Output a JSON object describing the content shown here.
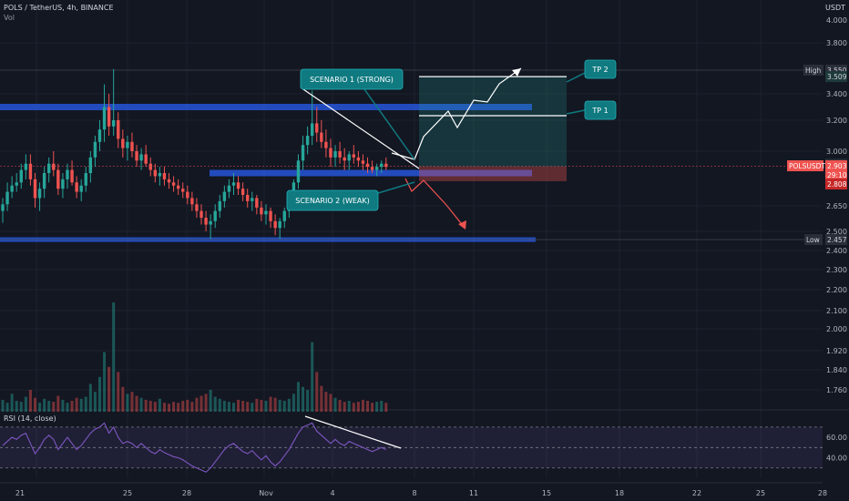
{
  "header": {
    "symbol_line": "POLS / TetherUS, 4h, BINANCE",
    "vol_label": "Vol"
  },
  "axis": {
    "unit": "USDT",
    "price_ticks": [
      "4.000",
      "3.800",
      "3.400",
      "3.200",
      "3.000",
      "2.650",
      "2.500",
      "2.400",
      "2.300",
      "2.200",
      "2.100",
      "2.000",
      "1.920",
      "1.840",
      "1.760"
    ],
    "rsi_ticks": [
      "60.00",
      "40.00"
    ],
    "time_ticks": [
      "21",
      "25",
      "28",
      "Nov",
      "4",
      "8",
      "11",
      "15",
      "18",
      "22",
      "25",
      "28"
    ]
  },
  "badges": {
    "high_label": "High",
    "high_price": "3.550",
    "tp2_price": "3.509",
    "tp1_price": "2.946",
    "symbol_tag": "POLSUSDT",
    "last_price": "2.903",
    "countdown": "29:10",
    "stop_price": "2.808",
    "low_label": "Low",
    "low_price": "2.457"
  },
  "annotations": {
    "scenario1": "SCENARIO 1 (STRONG)",
    "scenario2": "SCENARIO 2 (WEAK)",
    "tp1": "TP 1",
    "tp2": "TP 2"
  },
  "rsi": {
    "label": "RSI (14, close)"
  },
  "colors": {
    "background": "#131722",
    "bull": "#26a69a",
    "bear": "#ef5350",
    "zone_blue": "#2962ff",
    "rsi_line": "#7e57c2",
    "callout": "#0f7a80"
  },
  "chart_data": {
    "type": "candlestick",
    "title": "POLS / TetherUS, 4h, BINANCE",
    "ylabel": "USDT",
    "ylim": [
      1.7,
      4.0
    ],
    "x_ticks": [
      "21",
      "25",
      "28",
      "Nov",
      "4",
      "8",
      "11",
      "15",
      "18",
      "22",
      "25",
      "28"
    ],
    "candles": [
      [
        2.62,
        2.7,
        2.55,
        2.66
      ],
      [
        2.66,
        2.8,
        2.62,
        2.74
      ],
      [
        2.74,
        2.84,
        2.7,
        2.78
      ],
      [
        2.78,
        2.86,
        2.74,
        2.8
      ],
      [
        2.8,
        2.92,
        2.76,
        2.88
      ],
      [
        2.88,
        2.98,
        2.82,
        2.92
      ],
      [
        2.92,
        2.98,
        2.78,
        2.82
      ],
      [
        2.82,
        2.86,
        2.64,
        2.7
      ],
      [
        2.7,
        2.8,
        2.62,
        2.76
      ],
      [
        2.76,
        2.9,
        2.7,
        2.86
      ],
      [
        2.86,
        2.96,
        2.8,
        2.92
      ],
      [
        2.92,
        3.0,
        2.84,
        2.88
      ],
      [
        2.88,
        2.92,
        2.72,
        2.76
      ],
      [
        2.76,
        2.86,
        2.7,
        2.82
      ],
      [
        2.82,
        2.92,
        2.76,
        2.88
      ],
      [
        2.88,
        2.94,
        2.78,
        2.8
      ],
      [
        2.8,
        2.84,
        2.7,
        2.74
      ],
      [
        2.74,
        2.82,
        2.68,
        2.78
      ],
      [
        2.78,
        2.9,
        2.74,
        2.86
      ],
      [
        2.86,
        3.0,
        2.8,
        2.96
      ],
      [
        2.96,
        3.1,
        2.9,
        3.06
      ],
      [
        3.06,
        3.2,
        3.0,
        3.14
      ],
      [
        3.14,
        3.46,
        3.06,
        3.3
      ],
      [
        3.3,
        3.4,
        3.1,
        3.16
      ],
      [
        3.16,
        3.56,
        3.1,
        3.2
      ],
      [
        3.2,
        3.26,
        3.02,
        3.08
      ],
      [
        3.08,
        3.14,
        2.96,
        3.02
      ],
      [
        3.02,
        3.1,
        2.94,
        3.06
      ],
      [
        3.06,
        3.12,
        2.96,
        3.0
      ],
      [
        3.0,
        3.04,
        2.9,
        2.94
      ],
      [
        2.94,
        3.02,
        2.88,
        2.98
      ],
      [
        2.98,
        3.04,
        2.9,
        2.92
      ],
      [
        2.92,
        2.96,
        2.84,
        2.88
      ],
      [
        2.88,
        2.92,
        2.8,
        2.84
      ],
      [
        2.84,
        2.9,
        2.78,
        2.86
      ],
      [
        2.86,
        2.9,
        2.78,
        2.82
      ],
      [
        2.82,
        2.86,
        2.76,
        2.8
      ],
      [
        2.8,
        2.84,
        2.74,
        2.78
      ],
      [
        2.78,
        2.82,
        2.72,
        2.76
      ],
      [
        2.76,
        2.8,
        2.7,
        2.74
      ],
      [
        2.74,
        2.78,
        2.66,
        2.7
      ],
      [
        2.7,
        2.74,
        2.62,
        2.66
      ],
      [
        2.66,
        2.7,
        2.58,
        2.62
      ],
      [
        2.62,
        2.66,
        2.54,
        2.58
      ],
      [
        2.58,
        2.62,
        2.5,
        2.54
      ],
      [
        2.54,
        2.6,
        2.46,
        2.56
      ],
      [
        2.56,
        2.66,
        2.52,
        2.62
      ],
      [
        2.62,
        2.72,
        2.58,
        2.68
      ],
      [
        2.68,
        2.78,
        2.64,
        2.74
      ],
      [
        2.74,
        2.82,
        2.7,
        2.78
      ],
      [
        2.78,
        2.86,
        2.72,
        2.8
      ],
      [
        2.8,
        2.84,
        2.72,
        2.76
      ],
      [
        2.76,
        2.8,
        2.68,
        2.72
      ],
      [
        2.72,
        2.76,
        2.64,
        2.68
      ],
      [
        2.68,
        2.74,
        2.62,
        2.7
      ],
      [
        2.7,
        2.72,
        2.6,
        2.64
      ],
      [
        2.64,
        2.68,
        2.56,
        2.6
      ],
      [
        2.6,
        2.66,
        2.54,
        2.62
      ],
      [
        2.62,
        2.64,
        2.52,
        2.56
      ],
      [
        2.56,
        2.6,
        2.48,
        2.52
      ],
      [
        2.52,
        2.58,
        2.46,
        2.56
      ],
      [
        2.56,
        2.64,
        2.52,
        2.62
      ],
      [
        2.62,
        2.72,
        2.58,
        2.7
      ],
      [
        2.7,
        2.82,
        2.66,
        2.8
      ],
      [
        2.8,
        2.98,
        2.76,
        2.94
      ],
      [
        2.94,
        3.1,
        2.88,
        3.04
      ],
      [
        3.04,
        3.16,
        2.98,
        3.1
      ],
      [
        3.1,
        3.42,
        3.04,
        3.18
      ],
      [
        3.18,
        3.3,
        3.06,
        3.12
      ],
      [
        3.12,
        3.2,
        3.02,
        3.06
      ],
      [
        3.06,
        3.14,
        2.96,
        3.02
      ],
      [
        3.02,
        3.08,
        2.9,
        2.96
      ],
      [
        2.96,
        3.04,
        2.9,
        3.0
      ],
      [
        3.0,
        3.06,
        2.92,
        2.96
      ],
      [
        2.96,
        3.02,
        2.88,
        2.94
      ],
      [
        2.94,
        3.0,
        2.88,
        2.98
      ],
      [
        2.98,
        3.04,
        2.92,
        2.96
      ],
      [
        2.96,
        3.0,
        2.9,
        2.94
      ],
      [
        2.94,
        2.98,
        2.88,
        2.92
      ],
      [
        2.92,
        2.96,
        2.86,
        2.9
      ],
      [
        2.9,
        2.94,
        2.86,
        2.88
      ],
      [
        2.88,
        2.92,
        2.84,
        2.9
      ],
      [
        2.9,
        2.94,
        2.86,
        2.92
      ],
      [
        2.92,
        2.96,
        2.88,
        2.9
      ]
    ],
    "volume": [
      12,
      9,
      18,
      11,
      10,
      15,
      22,
      14,
      9,
      13,
      11,
      10,
      16,
      12,
      9,
      11,
      14,
      13,
      15,
      28,
      20,
      35,
      60,
      45,
      110,
      40,
      25,
      18,
      20,
      16,
      14,
      12,
      11,
      10,
      13,
      9,
      8,
      10,
      9,
      11,
      12,
      10,
      14,
      16,
      18,
      22,
      15,
      13,
      11,
      10,
      9,
      12,
      11,
      10,
      9,
      13,
      12,
      11,
      15,
      14,
      12,
      11,
      13,
      18,
      30,
      25,
      22,
      70,
      40,
      26,
      20,
      18,
      14,
      12,
      10,
      11,
      9,
      10,
      12,
      11,
      9,
      10,
      11,
      9
    ],
    "rsi": [
      52,
      56,
      60,
      58,
      62,
      64,
      54,
      44,
      50,
      58,
      62,
      58,
      48,
      54,
      60,
      54,
      48,
      52,
      58,
      64,
      68,
      70,
      74,
      64,
      70,
      60,
      54,
      56,
      54,
      50,
      54,
      50,
      46,
      44,
      48,
      45,
      43,
      41,
      40,
      38,
      35,
      32,
      30,
      28,
      26,
      30,
      36,
      42,
      48,
      52,
      54,
      50,
      46,
      44,
      47,
      42,
      38,
      42,
      36,
      32,
      36,
      42,
      48,
      56,
      64,
      70,
      72,
      74,
      66,
      62,
      58,
      54,
      58,
      54,
      52,
      56,
      54,
      52,
      50,
      48,
      46,
      48,
      50,
      48
    ],
    "zones": [
      {
        "name": "resistance",
        "price": 3.3
      },
      {
        "name": "support",
        "price": 2.86
      },
      {
        "name": "low-support",
        "price": 2.457
      }
    ],
    "levels": {
      "high": 3.55,
      "tp2": 3.509,
      "tp1": 2.946,
      "last": 2.903,
      "stop": 2.808,
      "low": 2.457
    },
    "rsi_levels": [
      70,
      50,
      30
    ]
  }
}
